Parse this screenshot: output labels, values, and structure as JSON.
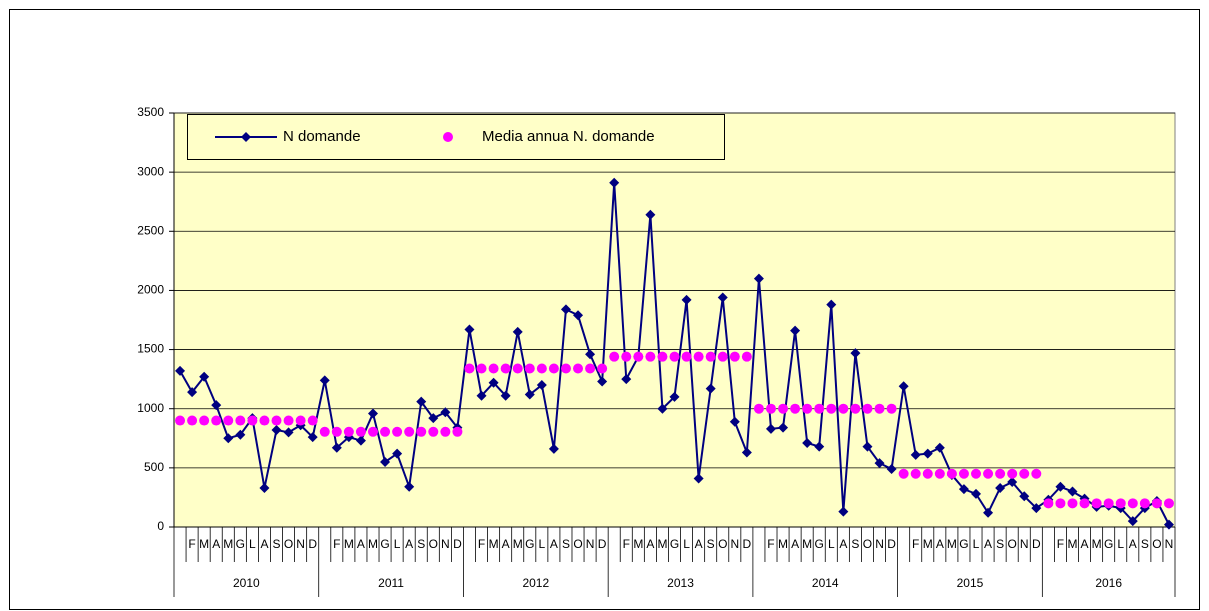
{
  "chart_data": {
    "type": "line",
    "categories": [
      null,
      "F",
      "M",
      "A",
      "M",
      "G",
      "L",
      "A",
      "S",
      "O",
      "N",
      "D",
      null,
      "F",
      "M",
      "A",
      "M",
      "G",
      "L",
      "A",
      "S",
      "O",
      "N",
      "D",
      null,
      "F",
      "M",
      "A",
      "M",
      "G",
      "L",
      "A",
      "S",
      "O",
      "N",
      "D",
      null,
      "F",
      "M",
      "A",
      "M",
      "G",
      "L",
      "A",
      "S",
      "O",
      "N",
      "D",
      null,
      "F",
      "M",
      "A",
      "M",
      "G",
      "L",
      "A",
      "S",
      "O",
      "N",
      "D",
      null,
      "F",
      "M",
      "A",
      "M",
      "G",
      "L",
      "A",
      "S",
      "O",
      "N",
      "D",
      null,
      "F",
      "M",
      "A",
      "M",
      "G",
      "L",
      "A",
      "S",
      "O",
      "N"
    ],
    "groups": [
      "2010",
      "2011",
      "2012",
      "2013",
      "2014",
      "2015",
      "2016"
    ],
    "series": [
      {
        "name": "N domande",
        "color": "#000080",
        "style": "line",
        "values": [
          1320,
          1140,
          1270,
          1030,
          750,
          780,
          920,
          330,
          820,
          800,
          860,
          760,
          1240,
          670,
          760,
          730,
          960,
          550,
          620,
          340,
          1060,
          920,
          970,
          840,
          1670,
          1110,
          1220,
          1110,
          1650,
          1120,
          1200,
          660,
          1840,
          1790,
          1460,
          1230,
          2910,
          1250,
          1440,
          2640,
          1000,
          1100,
          1920,
          410,
          1170,
          1940,
          890,
          630,
          2100,
          830,
          840,
          1660,
          710,
          680,
          1880,
          130,
          1470,
          680,
          540,
          490,
          1190,
          610,
          620,
          670,
          440,
          320,
          280,
          120,
          330,
          380,
          260,
          160,
          230,
          340,
          300,
          240,
          170,
          180,
          160,
          50,
          160,
          220,
          20
        ]
      },
      {
        "name": "Media annua N. domande",
        "color": "#ff00ff",
        "style": "dots",
        "values": [
          900,
          900,
          900,
          900,
          900,
          900,
          900,
          900,
          900,
          900,
          900,
          900,
          805,
          805,
          805,
          805,
          805,
          805,
          805,
          805,
          805,
          805,
          805,
          805,
          1340,
          1340,
          1340,
          1340,
          1340,
          1340,
          1340,
          1340,
          1340,
          1340,
          1340,
          1340,
          1440,
          1440,
          1440,
          1440,
          1440,
          1440,
          1440,
          1440,
          1440,
          1440,
          1440,
          1440,
          1000,
          1000,
          1000,
          1000,
          1000,
          1000,
          1000,
          1000,
          1000,
          1000,
          1000,
          1000,
          450,
          450,
          450,
          450,
          450,
          450,
          450,
          450,
          450,
          450,
          450,
          450,
          200,
          200,
          200,
          200,
          200,
          200,
          200,
          200,
          200,
          200,
          200
        ]
      }
    ],
    "ylim": [
      0,
      3500
    ],
    "yticks": [
      0,
      500,
      1000,
      1500,
      2000,
      2500,
      3000,
      3500
    ],
    "grid": true,
    "plot_background": "#ffffc8"
  }
}
